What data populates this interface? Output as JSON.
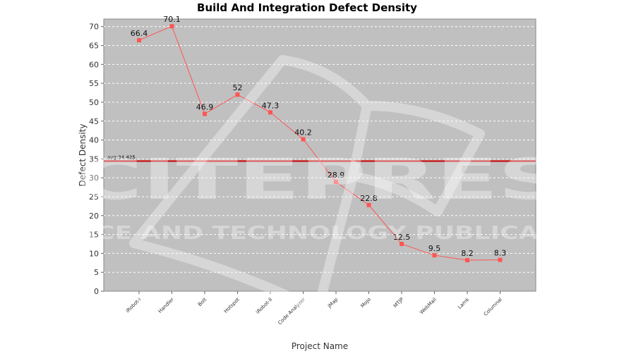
{
  "chart_data": {
    "type": "line",
    "title": "Build And Integration Defect Density",
    "xlabel": "Project Name",
    "ylabel": "Defect Density",
    "categories": [
      "iRobot-i",
      "Handler",
      "Bolt",
      "Hotspot",
      "iRobot-II",
      "Code Analyzer",
      "jMap",
      "Mojo",
      "MTJP",
      "WebMail",
      "Lamk",
      "Columnal"
    ],
    "series": [
      {
        "values": [
          66.4,
          70.1,
          46.9,
          52,
          47.3,
          40.2,
          28.9,
          22.8,
          12.5,
          9.5,
          8.2,
          8.3
        ]
      }
    ],
    "data_labels": [
      "66.4",
      "70.1",
      "46.9",
      "52",
      "47.3",
      "40.2",
      "28.9",
      "22.8",
      "12.5",
      "9.5",
      "8.2",
      "8.3"
    ],
    "ylim": [
      0,
      72
    ],
    "yticks": [
      0,
      5,
      10,
      15,
      20,
      25,
      30,
      35,
      40,
      45,
      50,
      55,
      60,
      65,
      70
    ],
    "ytick_labels": [
      "0",
      "5",
      "10",
      "15",
      "20",
      "25",
      "30",
      "35",
      "40",
      "45",
      "50",
      "55",
      "60",
      "65",
      "70"
    ],
    "avg_line": {
      "value": 34.425,
      "label": "avg:34.425"
    },
    "grid": true,
    "colors": {
      "series": "#ff5555",
      "avg": "#cc0000",
      "plot_bg": "#c0c0c0",
      "grid": "#ffffff"
    }
  },
  "watermark": {
    "brand": "SCITEPRESS",
    "tagline": "SCIENCE AND TECHNOLOGY PUBLICATIONS"
  }
}
